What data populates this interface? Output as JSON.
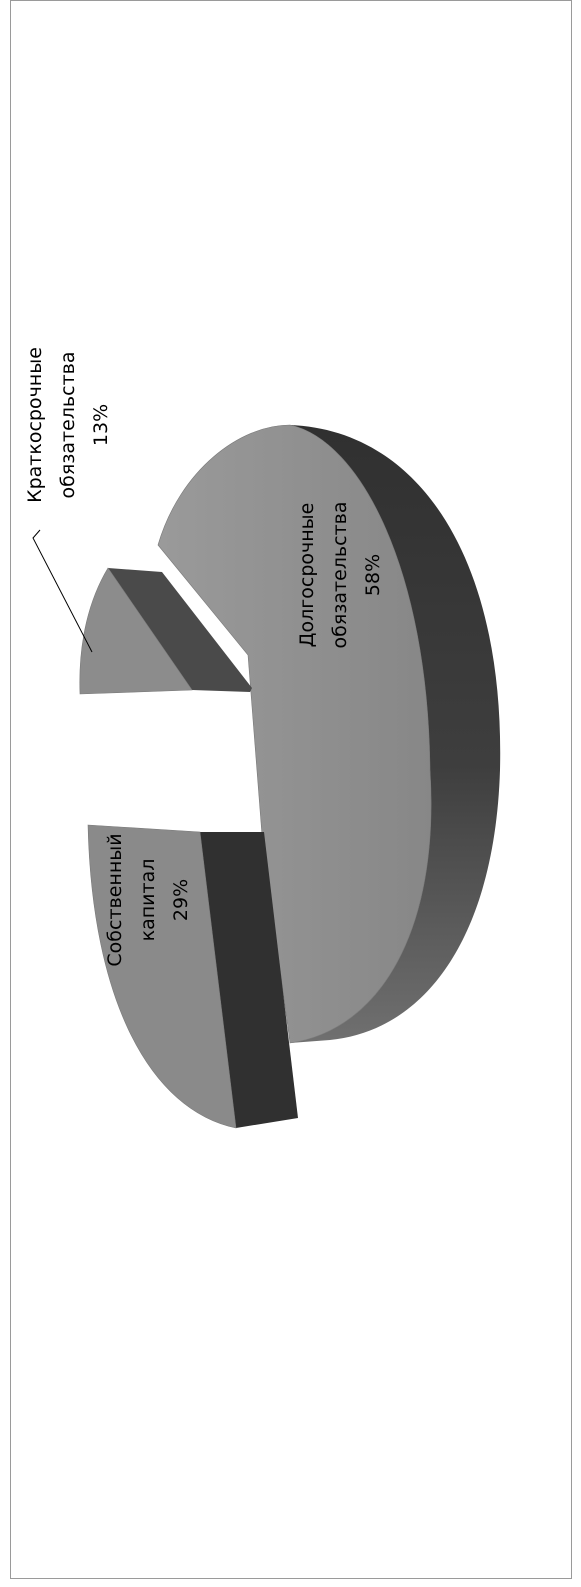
{
  "chart_data": {
    "type": "pie",
    "variant": "3d-exploded",
    "orientation": "rotated-90-counterclockwise",
    "title": "",
    "legend": "none",
    "slices": [
      {
        "label_lines": [
          "Собственный",
          "капитал"
        ],
        "value_text": "29%",
        "value": 29
      },
      {
        "label_lines": [
          "Краткосрочные",
          "обязательства"
        ],
        "value_text": "13%",
        "value": 13
      },
      {
        "label_lines": [
          "Долгосрочные",
          "обязательства"
        ],
        "value_text": "58%",
        "value": 58
      }
    ]
  },
  "colors": {
    "slice_top": "#8a8a8a",
    "slice_side_dark": "#2f2f2f",
    "slice_side_mid": "#4a4a4a",
    "frame": "#9a9a9a",
    "text": "#000000"
  }
}
